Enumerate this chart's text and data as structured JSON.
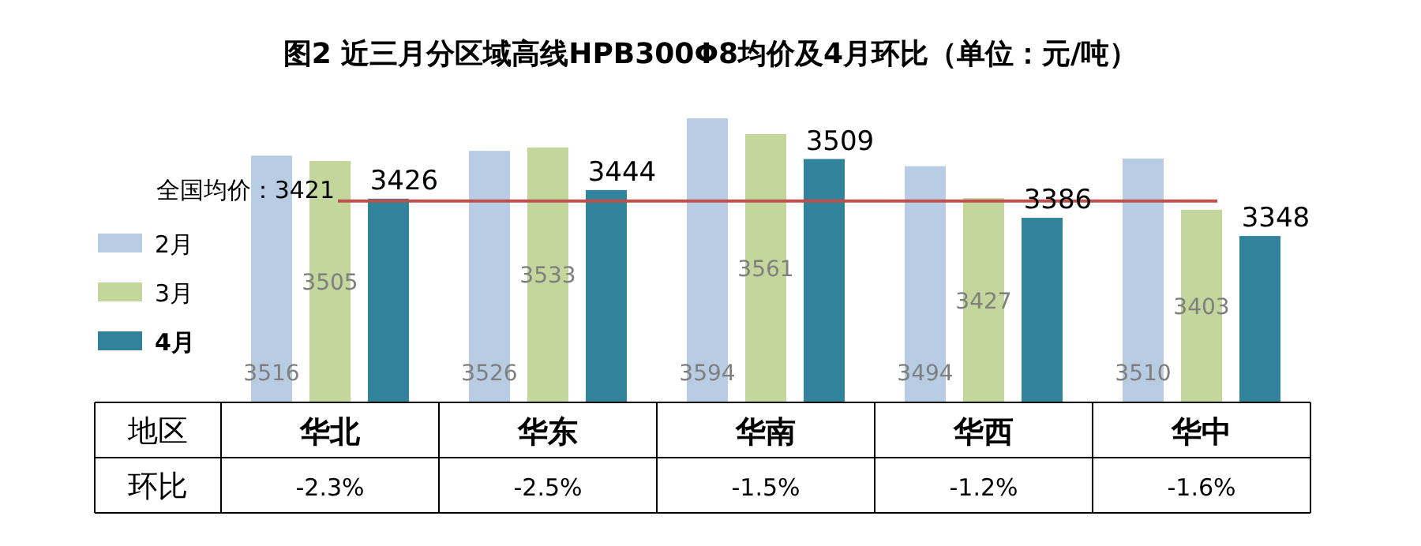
{
  "chart_data": {
    "type": "bar",
    "title": "图2 近三月分区域高线HPB300Φ8均价及4月环比（单位：元/吨）",
    "categories": [
      "华北",
      "华东",
      "华南",
      "华西",
      "华中"
    ],
    "series": [
      {
        "name": "2月",
        "color": "#b8cce4",
        "values": [
          3516,
          3526,
          3594,
          3494,
          3510
        ]
      },
      {
        "name": "3月",
        "color": "#c3d69b",
        "values": [
          3505,
          3533,
          3561,
          3427,
          3403
        ]
      },
      {
        "name": "4月",
        "color": "#31849b",
        "values": [
          3426,
          3444,
          3509,
          3386,
          3348
        ]
      }
    ],
    "ylim": [
      3000,
      3594
    ],
    "tick_labels": "x",
    "data_labels": true,
    "legend": "left",
    "ref_lines": [
      {
        "axis": "y",
        "value": 3421,
        "label": "全国均价：3421",
        "color": "#c0504d"
      }
    ],
    "annotations": [
      "地区",
      "环比",
      "-2.3%",
      "-2.5%",
      "-1.5%",
      "-1.2%",
      "-1.6%"
    ]
  }
}
